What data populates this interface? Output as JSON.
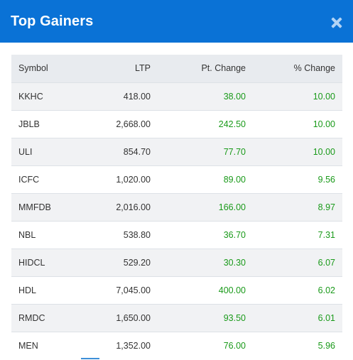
{
  "modal": {
    "title": "Top Gainers",
    "close_icon": "close-icon"
  },
  "table": {
    "columns": {
      "symbol": "Symbol",
      "ltp": "LTP",
      "pt_change": "Pt. Change",
      "pct_change": "% Change"
    },
    "rows": [
      {
        "symbol": "KKHC",
        "ltp": "418.00",
        "pt_change": "38.00",
        "pct_change": "10.00"
      },
      {
        "symbol": "JBLB",
        "ltp": "2,668.00",
        "pt_change": "242.50",
        "pct_change": "10.00"
      },
      {
        "symbol": "ULI",
        "ltp": "854.70",
        "pt_change": "77.70",
        "pct_change": "10.00"
      },
      {
        "symbol": "ICFC",
        "ltp": "1,020.00",
        "pt_change": "89.00",
        "pct_change": "9.56"
      },
      {
        "symbol": "MMFDB",
        "ltp": "2,016.00",
        "pt_change": "166.00",
        "pct_change": "8.97"
      },
      {
        "symbol": "NBL",
        "ltp": "538.80",
        "pt_change": "36.70",
        "pct_change": "7.31"
      },
      {
        "symbol": "HIDCL",
        "ltp": "529.20",
        "pt_change": "30.30",
        "pct_change": "6.07"
      },
      {
        "symbol": "HDL",
        "ltp": "7,045.00",
        "pt_change": "400.00",
        "pct_change": "6.02"
      },
      {
        "symbol": "RMDC",
        "ltp": "1,650.00",
        "pt_change": "93.50",
        "pct_change": "6.01"
      },
      {
        "symbol": "MEN",
        "ltp": "1,352.00",
        "pt_change": "76.00",
        "pct_change": "5.96"
      }
    ]
  },
  "colors": {
    "header_bg": "#0a72d6",
    "gain_text": "#1a9a1a"
  }
}
